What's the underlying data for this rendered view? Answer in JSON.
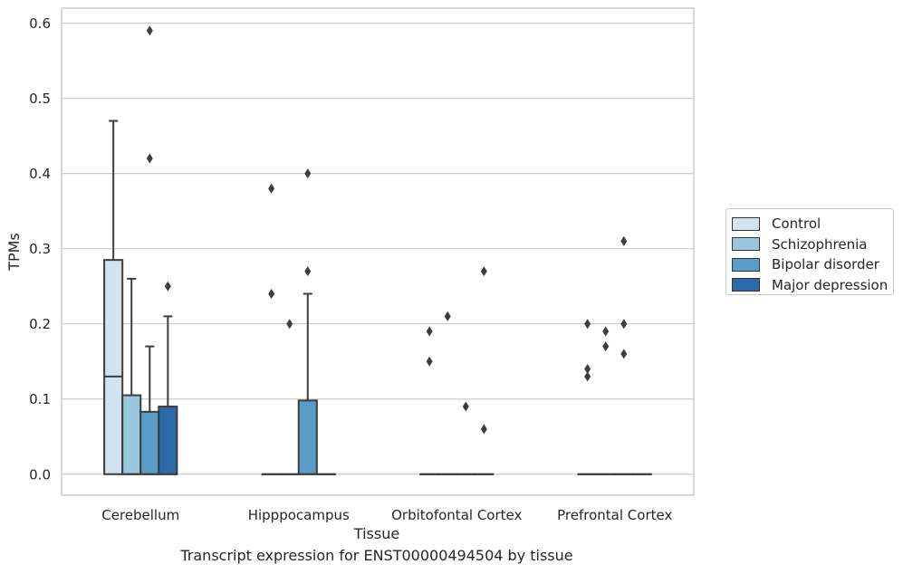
{
  "chart_data": {
    "type": "box",
    "caption": "Transcript expression for ENST00000494504 by tissue",
    "xlabel": "Tissue",
    "ylabel": "TPMs",
    "ylim": [
      -0.028,
      0.62
    ],
    "yticks": [
      "0.0",
      "0.1",
      "0.2",
      "0.3",
      "0.4",
      "0.5",
      "0.6"
    ],
    "grid": "horizontal",
    "legend_position": "right",
    "categories": [
      "Cerebellum",
      "Hipppocampus",
      "Orbitofontal Cortex",
      "Prefrontal Cortex"
    ],
    "series": [
      {
        "name": "Control",
        "color": "#d1e2f1",
        "boxes": [
          {
            "q1": 0,
            "median": 0.13,
            "q3": 0.285,
            "whisker_low": 0,
            "whisker_high": 0.47,
            "outliers": []
          },
          {
            "q1": 0,
            "median": 0,
            "q3": 0,
            "whisker_low": 0,
            "whisker_high": 0,
            "outliers": [
              0.38,
              0.24
            ]
          },
          {
            "q1": 0,
            "median": 0,
            "q3": 0,
            "whisker_low": 0,
            "whisker_high": 0,
            "outliers": [
              0.19,
              0.15
            ]
          },
          {
            "q1": 0,
            "median": 0,
            "q3": 0,
            "whisker_low": 0,
            "whisker_high": 0,
            "outliers": [
              0.2,
              0.14,
              0.13
            ]
          }
        ]
      },
      {
        "name": "Schizophrenia",
        "color": "#9ac7de",
        "boxes": [
          {
            "q1": 0,
            "median": 0,
            "q3": 0.105,
            "whisker_low": 0,
            "whisker_high": 0.26,
            "outliers": []
          },
          {
            "q1": 0,
            "median": 0,
            "q3": 0,
            "whisker_low": 0,
            "whisker_high": 0,
            "outliers": [
              0.2
            ]
          },
          {
            "q1": 0,
            "median": 0,
            "q3": 0,
            "whisker_low": 0,
            "whisker_high": 0,
            "outliers": [
              0.21
            ]
          },
          {
            "q1": 0,
            "median": 0,
            "q3": 0,
            "whisker_low": 0,
            "whisker_high": 0,
            "outliers": [
              0.19,
              0.17
            ]
          }
        ]
      },
      {
        "name": "Bipolar disorder",
        "color": "#5b9cc8",
        "boxes": [
          {
            "q1": 0,
            "median": 0,
            "q3": 0.083,
            "whisker_low": 0,
            "whisker_high": 0.17,
            "outliers": [
              0.59,
              0.42
            ]
          },
          {
            "q1": 0,
            "median": 0,
            "q3": 0.098,
            "whisker_low": 0,
            "whisker_high": 0.24,
            "outliers": [
              0.4,
              0.27
            ]
          },
          {
            "q1": 0,
            "median": 0,
            "q3": 0,
            "whisker_low": 0,
            "whisker_high": 0,
            "outliers": [
              0.09
            ]
          },
          {
            "q1": 0,
            "median": 0,
            "q3": 0,
            "whisker_low": 0,
            "whisker_high": 0,
            "outliers": [
              0.31,
              0.2,
              0.16
            ]
          }
        ]
      },
      {
        "name": "Major depression",
        "color": "#2c69a8",
        "boxes": [
          {
            "q1": 0,
            "median": 0,
            "q3": 0.09,
            "whisker_low": 0,
            "whisker_high": 0.21,
            "outliers": [
              0.25
            ]
          },
          {
            "q1": 0,
            "median": 0,
            "q3": 0,
            "whisker_low": 0,
            "whisker_high": 0,
            "outliers": []
          },
          {
            "q1": 0,
            "median": 0,
            "q3": 0,
            "whisker_low": 0,
            "whisker_high": 0,
            "outliers": [
              0.27,
              0.06
            ]
          },
          {
            "q1": 0,
            "median": 0,
            "q3": 0,
            "whisker_low": 0,
            "whisker_high": 0,
            "outliers": []
          }
        ]
      }
    ]
  }
}
